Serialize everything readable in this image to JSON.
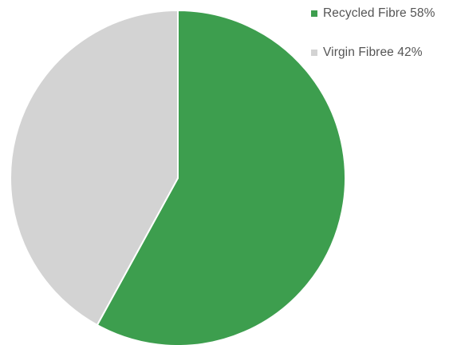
{
  "chart_data": {
    "type": "pie",
    "title": "",
    "slices": [
      {
        "label": "Recycled Fibre",
        "value": 58,
        "display": "Recycled Fibre 58%",
        "color": "#3d9e4e"
      },
      {
        "label": "Virgin Fibree",
        "value": 42,
        "display": "Virgin Fibree 42%",
        "color": "#d3d3d3"
      }
    ],
    "legend_position": "top-right",
    "start_angle": "12 o'clock",
    "direction": "clockwise"
  }
}
